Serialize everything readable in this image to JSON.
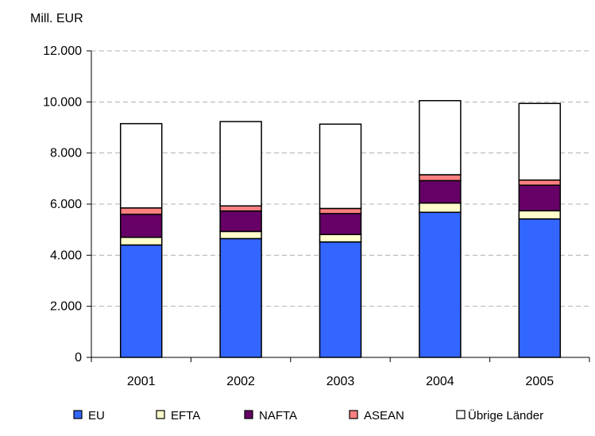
{
  "chart_data": {
    "type": "bar",
    "stacked": true,
    "ylabel": "Mill. EUR",
    "ylim": [
      0,
      12000
    ],
    "yticks": [
      0,
      2000,
      4000,
      6000,
      8000,
      10000,
      12000
    ],
    "ytick_labels": [
      "0",
      "2.000",
      "4.000",
      "6.000",
      "8.000",
      "10.000",
      "12.000"
    ],
    "grid": "horizontal dashed",
    "legend_position": "bottom",
    "categories": [
      "2001",
      "2002",
      "2003",
      "2004",
      "2005"
    ],
    "series": [
      {
        "name": "EU",
        "color": "#3366ff",
        "values": [
          4400,
          4650,
          4520,
          5680,
          5420
        ]
      },
      {
        "name": "EFTA",
        "color": "#ffffcc",
        "values": [
          300,
          280,
          290,
          360,
          320
        ]
      },
      {
        "name": "NAFTA",
        "color": "#660066",
        "values": [
          900,
          800,
          820,
          880,
          1000
        ]
      },
      {
        "name": "ASEAN",
        "color": "#ff8080",
        "values": [
          250,
          200,
          200,
          230,
          200
        ]
      },
      {
        "name": "Übrige Länder",
        "color": "#ffffff",
        "values": [
          3300,
          3300,
          3300,
          2900,
          3000
        ]
      }
    ]
  }
}
